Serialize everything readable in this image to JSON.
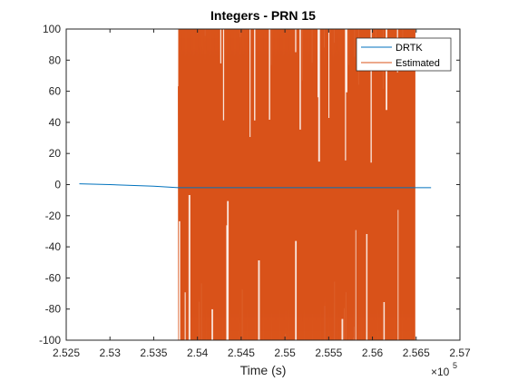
{
  "chart_data": {
    "type": "line",
    "title": "Integers - PRN 15",
    "xlabel": "Time (s)",
    "ylabel": "",
    "x_exponent_base": "×10",
    "x_exponent_power": "5",
    "xlim": [
      2.525,
      2.57
    ],
    "ylim": [
      -100,
      100
    ],
    "x_ticks": [
      2.525,
      2.53,
      2.535,
      2.54,
      2.545,
      2.55,
      2.555,
      2.56,
      2.565,
      2.57
    ],
    "x_tick_labels": [
      "2.525",
      "2.53",
      "2.535",
      "2.54",
      "2.545",
      "2.55",
      "2.555",
      "2.56",
      "2.565",
      "2.57"
    ],
    "y_ticks": [
      -100,
      -80,
      -60,
      -40,
      -20,
      0,
      20,
      40,
      60,
      80,
      100
    ],
    "y_tick_labels": [
      "-100",
      "-80",
      "-60",
      "-40",
      "-20",
      "0",
      "20",
      "40",
      "60",
      "80",
      "100"
    ],
    "grid": false,
    "legend_position": "top-right",
    "series": [
      {
        "name": "DRTK",
        "color": "#0072BD",
        "x": [
          2.5265,
          2.53,
          2.535,
          2.5378,
          2.545,
          2.55,
          2.555,
          2.56,
          2.5667
        ],
        "y": [
          0.5,
          0,
          -1,
          -2,
          -2,
          -2,
          -2,
          -2,
          -2
        ]
      },
      {
        "name": "Estimated",
        "color": "#D95319",
        "x_range": [
          2.5378,
          2.5649
        ],
        "y_range": [
          -100,
          100
        ],
        "description_values": "oscillates between -100 and 100",
        "band_x": [
          2.5378,
          2.5649
        ]
      }
    ]
  }
}
